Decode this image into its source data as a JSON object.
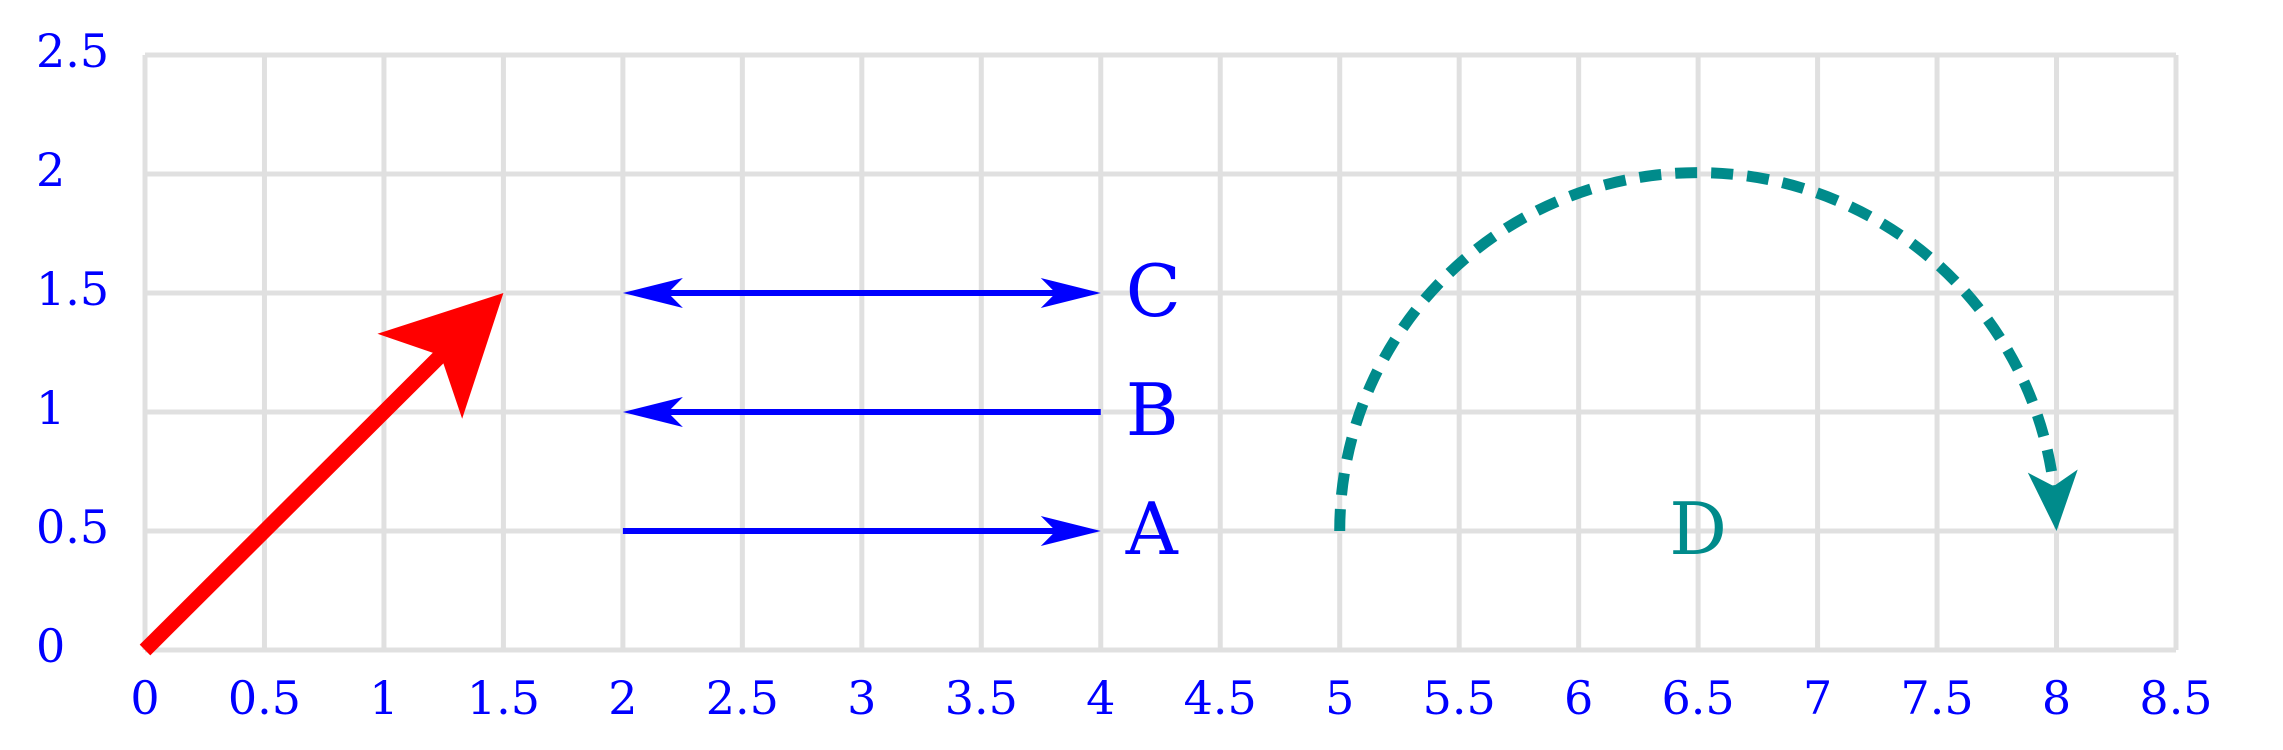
{
  "chart_data": {
    "type": "vector",
    "xlim": [
      0,
      8.5
    ],
    "ylim": [
      0,
      2.5
    ],
    "xticks": [
      0,
      0.5,
      1,
      1.5,
      2,
      2.5,
      3,
      3.5,
      4,
      4.5,
      5,
      5.5,
      6,
      6.5,
      7,
      7.5,
      8,
      8.5
    ],
    "yticks": [
      0,
      0.5,
      1,
      1.5,
      2,
      2.5
    ],
    "grid": true,
    "arrows": [
      {
        "from": [
          0,
          0
        ],
        "to": [
          1.5,
          1.5
        ],
        "heads": "end",
        "color": "#ff0000",
        "width": "thick"
      },
      {
        "from": [
          2,
          0.5
        ],
        "to": [
          4,
          0.5
        ],
        "heads": "end",
        "color": "#0000ff",
        "label": "A"
      },
      {
        "from": [
          2,
          1
        ],
        "to": [
          4,
          1
        ],
        "heads": "start",
        "color": "#0000ff",
        "label": "B"
      },
      {
        "from": [
          2,
          1.5
        ],
        "to": [
          4,
          1.5
        ],
        "heads": "both",
        "color": "#0000ff",
        "label": "C"
      }
    ],
    "arcs": [
      {
        "from": [
          5,
          0.5
        ],
        "to": [
          8,
          0.5
        ],
        "center": [
          6.5,
          0.5
        ],
        "heads": "end",
        "color": "#008b8b",
        "style": "dashed",
        "label": "D"
      }
    ]
  }
}
